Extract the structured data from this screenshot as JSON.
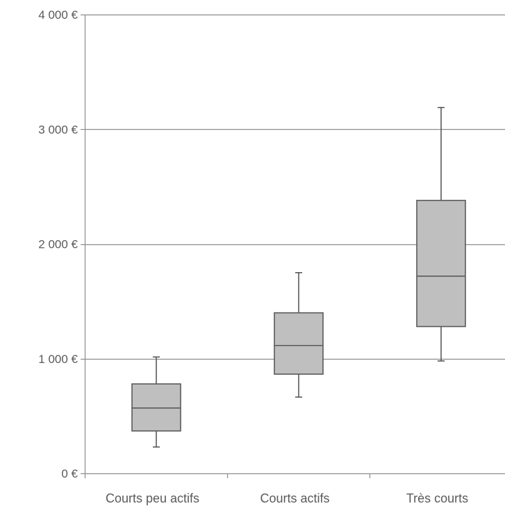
{
  "chart_data": {
    "type": "box",
    "title": "",
    "xlabel": "",
    "ylabel": "",
    "ylim": [
      0,
      4000
    ],
    "y_ticks": [
      0,
      1000,
      2000,
      3000,
      4000
    ],
    "y_tick_labels": [
      "0 €",
      "1 000 €",
      "2 000 €",
      "3 000 €",
      "4 000 €"
    ],
    "grid": true,
    "legend": "none",
    "colors": {
      "box_fill": "#bfbfbf",
      "box_stroke": "#595959",
      "grid": "#8c8c8c",
      "axis": "#8c8c8c"
    },
    "categories": [
      "Courts peu actifs",
      "Courts actifs",
      "Très courts"
    ],
    "boxes": [
      {
        "category": "Courts peu actifs",
        "min": 230,
        "q1": 370,
        "median": 570,
        "q3": 780,
        "max": 1015
      },
      {
        "category": "Courts actifs",
        "min": 665,
        "q1": 865,
        "median": 1115,
        "q3": 1400,
        "max": 1750
      },
      {
        "category": "Très courts",
        "min": 980,
        "q1": 1280,
        "median": 1720,
        "q3": 2380,
        "max": 3190
      }
    ]
  }
}
